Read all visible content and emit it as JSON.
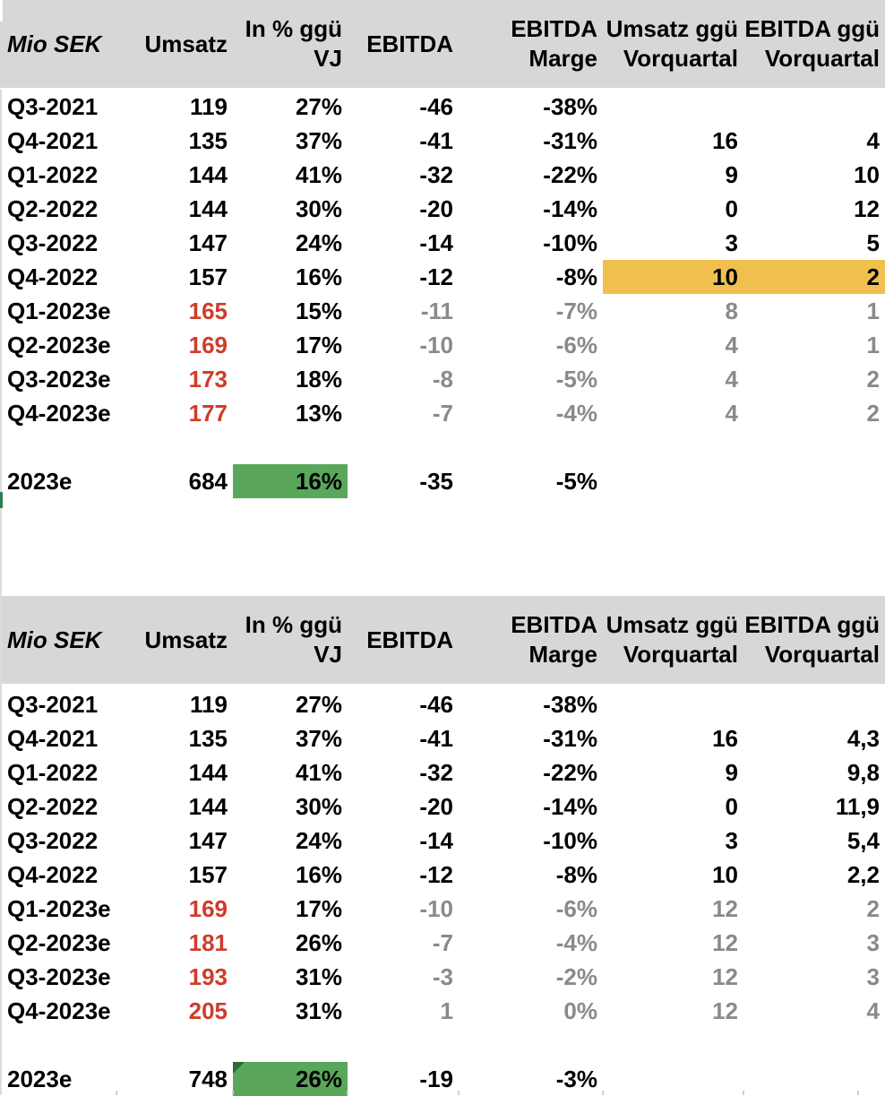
{
  "colors": {
    "header_bg": "#D7D7D7",
    "text": "#000000",
    "forecast_red": "#D03B2B",
    "forecast_gray": "#8A8A8A",
    "highlight_orange": "#EFC04E",
    "highlight_green": "#5AA75C",
    "triangle_green": "#2E6B30"
  },
  "column_keys": [
    "period",
    "umsatz",
    "pct_vj",
    "ebitda",
    "ebitda_marge",
    "umsatz_vq",
    "ebitda_vq"
  ],
  "tables": [
    {
      "id": "table-top",
      "headers": [
        "Mio SEK",
        "Umsatz",
        "In % ggü\nVJ",
        "EBITDA",
        "EBITDA\nMarge",
        "Umsatz ggü\nVorquartal",
        "EBITDA ggü\nVorquartal"
      ],
      "rows": [
        {
          "cells": [
            "Q3-2021",
            "119",
            "27%",
            "-46",
            "-38%",
            "",
            ""
          ],
          "type": "history",
          "highlight_cols": []
        },
        {
          "cells": [
            "Q4-2021",
            "135",
            "37%",
            "-41",
            "-31%",
            "16",
            "4"
          ],
          "type": "history",
          "highlight_cols": []
        },
        {
          "cells": [
            "Q1-2022",
            "144",
            "41%",
            "-32",
            "-22%",
            "9",
            "10"
          ],
          "type": "history",
          "highlight_cols": []
        },
        {
          "cells": [
            "Q2-2022",
            "144",
            "30%",
            "-20",
            "-14%",
            "0",
            "12"
          ],
          "type": "history",
          "highlight_cols": []
        },
        {
          "cells": [
            "Q3-2022",
            "147",
            "24%",
            "-14",
            "-10%",
            "3",
            "5"
          ],
          "type": "history",
          "highlight_cols": []
        },
        {
          "cells": [
            "Q4-2022",
            "157",
            "16%",
            "-12",
            "-8%",
            "10",
            "2"
          ],
          "type": "history",
          "highlight_cols": [
            5,
            6
          ]
        },
        {
          "cells": [
            "Q1-2023e",
            "165",
            "15%",
            "-11",
            "-7%",
            "8",
            "1"
          ],
          "type": "forecast",
          "highlight_cols": []
        },
        {
          "cells": [
            "Q2-2023e",
            "169",
            "17%",
            "-10",
            "-6%",
            "4",
            "1"
          ],
          "type": "forecast",
          "highlight_cols": []
        },
        {
          "cells": [
            "Q3-2023e",
            "173",
            "18%",
            "-8",
            "-5%",
            "4",
            "2"
          ],
          "type": "forecast",
          "highlight_cols": []
        },
        {
          "cells": [
            "Q4-2023e",
            "177",
            "13%",
            "-7",
            "-4%",
            "4",
            "2"
          ],
          "type": "forecast",
          "highlight_cols": []
        }
      ],
      "total": {
        "cells": [
          "2023e",
          "684",
          "16%",
          "-35",
          "-5%",
          "",
          ""
        ],
        "green_col": 2,
        "corner_triangle": false
      }
    },
    {
      "id": "table-bottom",
      "headers": [
        "Mio SEK",
        "Umsatz",
        "In % ggü\nVJ",
        "EBITDA",
        "EBITDA\nMarge",
        "Umsatz ggü\nVorquartal",
        "EBITDA ggü\nVorquartal"
      ],
      "rows": [
        {
          "cells": [
            "Q3-2021",
            "119",
            "27%",
            "-46",
            "-38%",
            "",
            ""
          ],
          "type": "history",
          "highlight_cols": []
        },
        {
          "cells": [
            "Q4-2021",
            "135",
            "37%",
            "-41",
            "-31%",
            "16",
            "4,3"
          ],
          "type": "history",
          "highlight_cols": []
        },
        {
          "cells": [
            "Q1-2022",
            "144",
            "41%",
            "-32",
            "-22%",
            "9",
            "9,8"
          ],
          "type": "history",
          "highlight_cols": []
        },
        {
          "cells": [
            "Q2-2022",
            "144",
            "30%",
            "-20",
            "-14%",
            "0",
            "11,9"
          ],
          "type": "history",
          "highlight_cols": []
        },
        {
          "cells": [
            "Q3-2022",
            "147",
            "24%",
            "-14",
            "-10%",
            "3",
            "5,4"
          ],
          "type": "history",
          "highlight_cols": []
        },
        {
          "cells": [
            "Q4-2022",
            "157",
            "16%",
            "-12",
            "-8%",
            "10",
            "2,2"
          ],
          "type": "history",
          "highlight_cols": []
        },
        {
          "cells": [
            "Q1-2023e",
            "169",
            "17%",
            "-10",
            "-6%",
            "12",
            "2"
          ],
          "type": "forecast",
          "highlight_cols": []
        },
        {
          "cells": [
            "Q2-2023e",
            "181",
            "26%",
            "-7",
            "-4%",
            "12",
            "3"
          ],
          "type": "forecast",
          "highlight_cols": []
        },
        {
          "cells": [
            "Q3-2023e",
            "193",
            "31%",
            "-3",
            "-2%",
            "12",
            "3"
          ],
          "type": "forecast",
          "highlight_cols": []
        },
        {
          "cells": [
            "Q4-2023e",
            "205",
            "31%",
            "1",
            "0%",
            "12",
            "4"
          ],
          "type": "forecast",
          "highlight_cols": []
        }
      ],
      "total": {
        "cells": [
          "2023e",
          "748",
          "26%",
          "-19",
          "-3%",
          "",
          ""
        ],
        "green_col": 2,
        "corner_triangle": true
      }
    }
  ]
}
